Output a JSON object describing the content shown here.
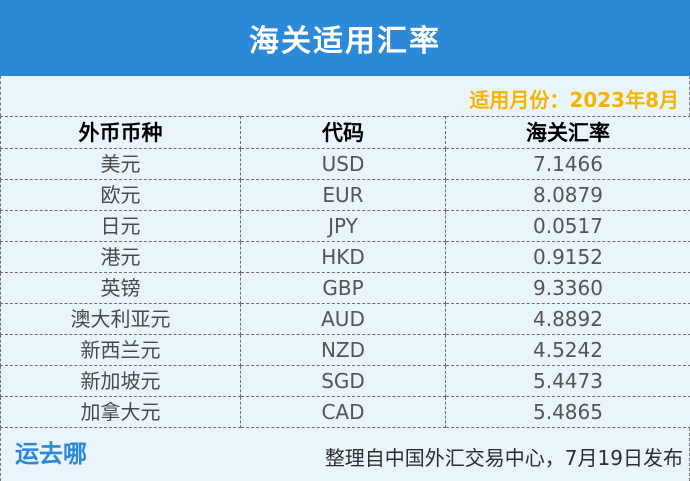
{
  "header": {
    "title": "海关适用汇率"
  },
  "month_label": "适用月份：2023年8月",
  "table": {
    "columns": [
      "外币币种",
      "代码",
      "海关汇率"
    ],
    "rows": [
      {
        "name": "美元",
        "code": "USD",
        "rate": "7.1466"
      },
      {
        "name": "欧元",
        "code": "EUR",
        "rate": "8.0879"
      },
      {
        "name": "日元",
        "code": "JPY",
        "rate": "0.0517"
      },
      {
        "name": "港元",
        "code": "HKD",
        "rate": "0.9152"
      },
      {
        "name": "英镑",
        "code": "GBP",
        "rate": "9.3360"
      },
      {
        "name": "澳大利亚元",
        "code": "AUD",
        "rate": "4.8892"
      },
      {
        "name": "新西兰元",
        "code": "NZD",
        "rate": "4.5242"
      },
      {
        "name": "新加坡元",
        "code": "SGD",
        "rate": "5.4473"
      },
      {
        "name": "加拿大元",
        "code": "CAD",
        "rate": "5.4865"
      }
    ]
  },
  "footer": {
    "logo": "运去哪",
    "credit": "整理自中国外汇交易中心，7月19日发布"
  },
  "colors": {
    "header_bg": "#2b89d8",
    "month_text": "#f5b400",
    "page_bg": "#e9f4fb"
  }
}
